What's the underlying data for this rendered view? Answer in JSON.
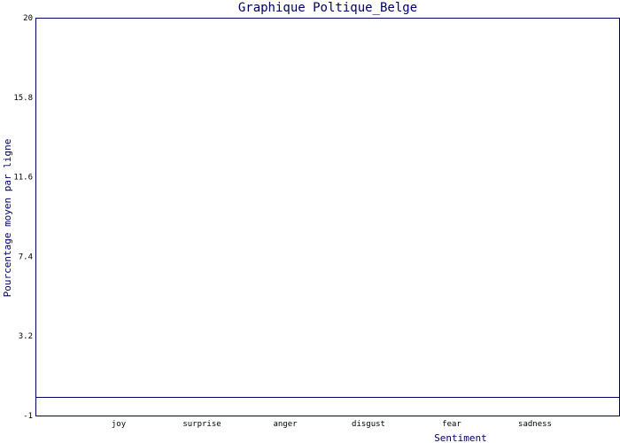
{
  "chart_data": {
    "type": "bar",
    "title": "Graphique Poltique_Belge",
    "xlabel": "Sentiment",
    "ylabel": "Pourcentage moyen par ligne",
    "categories": [
      "joy",
      "surprise",
      "anger",
      "disgust",
      "fear",
      "sadness"
    ],
    "values": [
      0,
      0,
      0,
      0,
      0,
      0
    ],
    "ylim": [
      -1,
      20
    ],
    "yticks": [
      "-1",
      "3.2",
      "7.4",
      "11.6",
      "15.8",
      "20"
    ],
    "grid": false,
    "colors": {
      "axis": "#000066",
      "background": "#ffffff"
    }
  }
}
